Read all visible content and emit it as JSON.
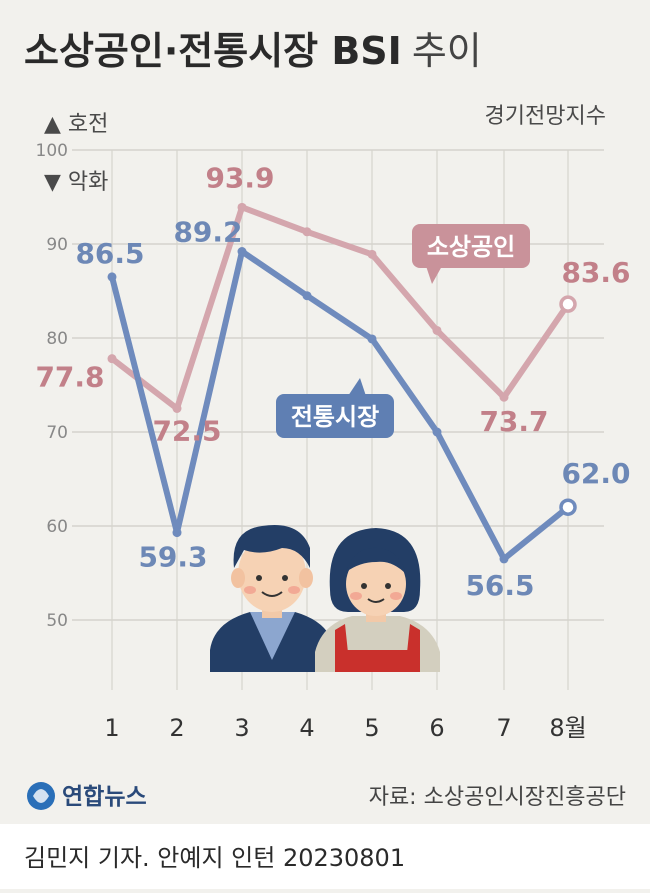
{
  "header": {
    "title_bold": "소상공인·전통시장 BSI",
    "title_light": "추이",
    "index_label": "경기전망지수"
  },
  "legend": {
    "up": "▲ 호전",
    "down": "▼ 악화"
  },
  "chart_data": {
    "type": "line",
    "title": "소상공인·전통시장 BSI 추이",
    "ylabel": "경기전망지수",
    "categories": [
      "1",
      "2",
      "3",
      "4",
      "5",
      "6",
      "7",
      "8월"
    ],
    "ylim": [
      50,
      100
    ],
    "yticks": [
      "100",
      "90",
      "80",
      "70",
      "60",
      "50"
    ],
    "series": [
      {
        "name": "소상공인",
        "color": "#d4a6ad",
        "values": [
          77.8,
          72.5,
          93.9,
          91.3,
          88.9,
          80.8,
          73.7,
          83.6
        ],
        "labels": [
          "77.8",
          "72.5",
          "93.9",
          "",
          "",
          "",
          "73.7",
          "83.6"
        ]
      },
      {
        "name": "전통시장",
        "color": "#6f8bbd",
        "values": [
          86.5,
          59.3,
          89.2,
          84.5,
          79.9,
          70.0,
          56.5,
          62.0
        ],
        "labels": [
          "86.5",
          "59.3",
          "89.2",
          "",
          "",
          "",
          "56.5",
          "62.0"
        ]
      }
    ]
  },
  "source": "자료: 소상공인시장진흥공단",
  "logo": "연합뉴스",
  "footer": "김민지 기자. 안예지 인턴  20230801"
}
